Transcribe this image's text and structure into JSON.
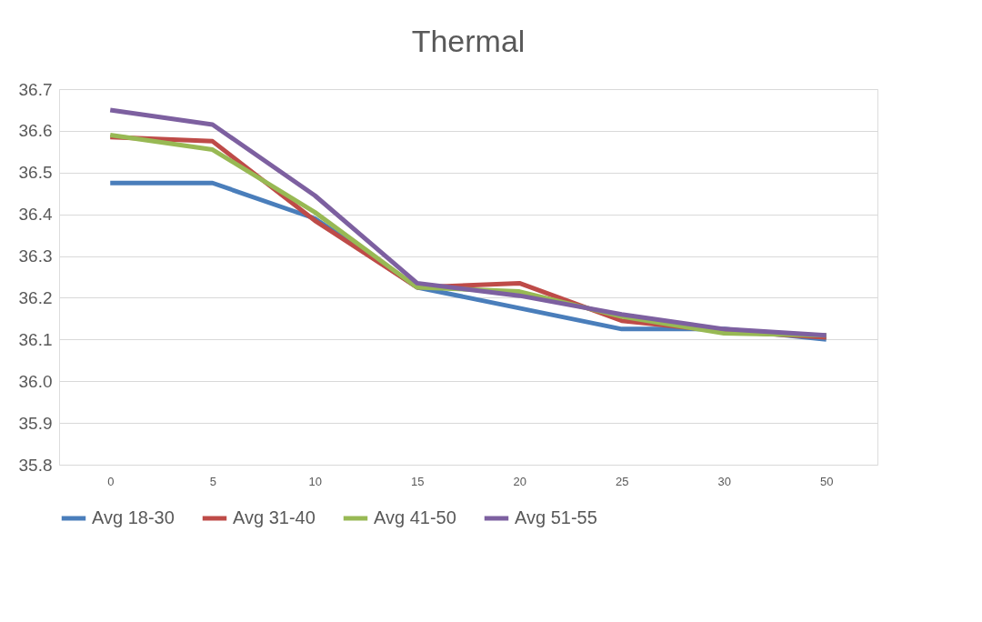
{
  "chart_data": {
    "type": "line",
    "title": "Thermal",
    "categories": [
      "0",
      "5",
      "10",
      "15",
      "20",
      "25",
      "30",
      "50"
    ],
    "series": [
      {
        "name": "Avg 18-30",
        "color": "#4a7ebb",
        "values": [
          36.475,
          36.475,
          36.39,
          36.225,
          36.175,
          36.125,
          36.125,
          36.1
        ]
      },
      {
        "name": "Avg 31-40",
        "color": "#be4b48",
        "values": [
          36.585,
          36.575,
          36.385,
          36.225,
          36.235,
          36.145,
          36.12,
          36.105
        ]
      },
      {
        "name": "Avg 41-50",
        "color": "#98b954",
        "values": [
          36.59,
          36.555,
          36.405,
          36.225,
          36.215,
          36.155,
          36.115,
          36.11
        ]
      },
      {
        "name": "Avg 51-55",
        "color": "#7d60a0",
        "values": [
          36.65,
          36.615,
          36.445,
          36.235,
          36.205,
          36.16,
          36.125,
          36.11
        ]
      }
    ],
    "ylim": [
      35.8,
      36.7
    ],
    "yticks": [
      {
        "value": 35.8,
        "label": "35.8"
      },
      {
        "value": 35.9,
        "label": "35.9"
      },
      {
        "value": 36.0,
        "label": "36.0"
      },
      {
        "value": 36.1,
        "label": "36.1"
      },
      {
        "value": 36.2,
        "label": "36.2"
      },
      {
        "value": 36.3,
        "label": "36.3"
      },
      {
        "value": 36.4,
        "label": "36.4"
      },
      {
        "value": 36.5,
        "label": "36.5"
      },
      {
        "value": 36.6,
        "label": "36.6"
      },
      {
        "value": 36.7,
        "label": "36.7"
      }
    ],
    "grid": "y",
    "legend": "bottom",
    "marker": "none",
    "line_style": "solid"
  }
}
